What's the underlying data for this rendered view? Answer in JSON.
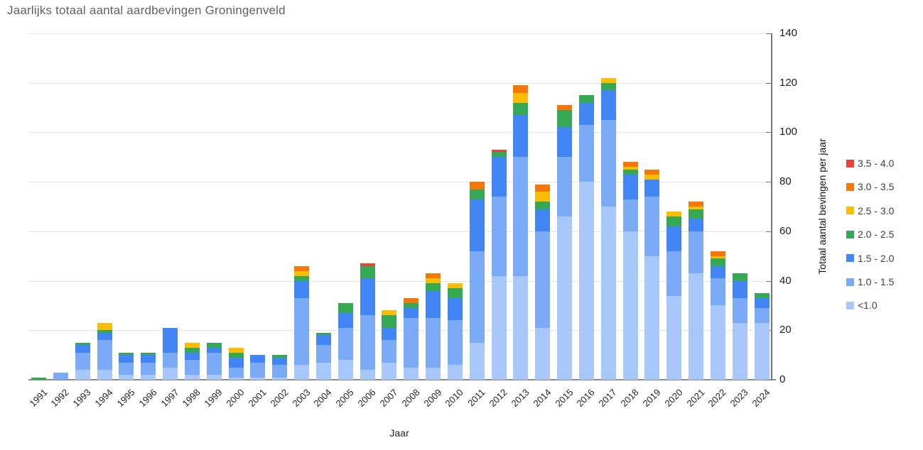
{
  "title": "Jaarlijks totaal aantal aardbevingen Groningenveld",
  "axes": {
    "x_title": "Jaar",
    "y_title": "Totaal aantal bevingen per jaar",
    "y_ticks": [
      0,
      20,
      40,
      60,
      80,
      100,
      120,
      140
    ],
    "y_max": 140
  },
  "legend": [
    {
      "label": "3.5 - 4.0",
      "color": "#EA4335"
    },
    {
      "label": "3.0 - 3.5",
      "color": "#F4770C"
    },
    {
      "label": "2.5 - 3.0",
      "color": "#FBBC04"
    },
    {
      "label": "2.0 - 2.5",
      "color": "#34A853"
    },
    {
      "label": "1.5 - 2.0",
      "color": "#4285F4"
    },
    {
      "label": "1.0 - 1.5",
      "color": "#7BAAF7"
    },
    {
      "label": "<1.0",
      "color": "#A8C7FA"
    }
  ],
  "chart_data": {
    "type": "bar",
    "stacked": true,
    "title": "Jaarlijks totaal aantal aardbevingen Groningenveld",
    "xlabel": "Jaar",
    "ylabel": "Totaal aantal bevingen per jaar",
    "ylim": [
      0,
      140
    ],
    "grid": "horizontal",
    "legend_position": "right",
    "categories": [
      "1991",
      "1992",
      "1993",
      "1994",
      "1995",
      "1996",
      "1997",
      "1998",
      "1999",
      "2000",
      "2001",
      "2002",
      "2003",
      "2004",
      "2005",
      "2006",
      "2007",
      "2008",
      "2009",
      "2010",
      "2011",
      "2012",
      "2013",
      "2014",
      "2015",
      "2016",
      "2017",
      "2018",
      "2019",
      "2020",
      "2021",
      "2022",
      "2023",
      "2024"
    ],
    "series": [
      {
        "name": "<1.0",
        "color": "#A8C7FA",
        "values": [
          0,
          0,
          4,
          4,
          2,
          2,
          5,
          2,
          2,
          1,
          1,
          1,
          6,
          7,
          8,
          4,
          7,
          5,
          5,
          6,
          15,
          42,
          42,
          21,
          66,
          80,
          70,
          60,
          50,
          34,
          43,
          30,
          23,
          23
        ]
      },
      {
        "name": "1.0 - 1.5",
        "color": "#7BAAF7",
        "values": [
          0,
          3,
          7,
          12,
          5,
          5,
          6,
          6,
          9,
          4,
          6,
          5,
          27,
          7,
          13,
          22,
          9,
          20,
          20,
          18,
          37,
          32,
          48,
          39,
          24,
          23,
          35,
          13,
          24,
          18,
          17,
          11,
          10,
          6
        ]
      },
      {
        "name": "1.5 - 2.0",
        "color": "#4285F4",
        "values": [
          0,
          0,
          3,
          3,
          3,
          3,
          10,
          3,
          2,
          4,
          3,
          3,
          7,
          4,
          6,
          15,
          5,
          4,
          11,
          9,
          21,
          16,
          17,
          9,
          12,
          9,
          12,
          10,
          7,
          10,
          5,
          5,
          7,
          4
        ]
      },
      {
        "name": "2.0 - 2.5",
        "color": "#34A853",
        "values": [
          1,
          0,
          1,
          1,
          1,
          1,
          0,
          2,
          2,
          2,
          0,
          1,
          2,
          1,
          4,
          5,
          5,
          2,
          3,
          4,
          4,
          2,
          5,
          3,
          7,
          3,
          3,
          2,
          0,
          4,
          4,
          3,
          3,
          2
        ]
      },
      {
        "name": "2.5 - 3.0",
        "color": "#FBBC04",
        "values": [
          0,
          0,
          0,
          3,
          0,
          0,
          0,
          2,
          0,
          2,
          0,
          0,
          2,
          0,
          0,
          0,
          2,
          0,
          2,
          2,
          0,
          0,
          4,
          4,
          0,
          0,
          2,
          1,
          2,
          2,
          1,
          1,
          0,
          0
        ]
      },
      {
        "name": "3.0 - 3.5",
        "color": "#F4770C",
        "values": [
          0,
          0,
          0,
          0,
          0,
          0,
          0,
          0,
          0,
          0,
          0,
          0,
          2,
          0,
          0,
          0,
          0,
          2,
          2,
          0,
          3,
          0,
          3,
          3,
          2,
          0,
          0,
          2,
          2,
          0,
          2,
          2,
          0,
          0
        ]
      },
      {
        "name": "3.5 - 4.0",
        "color": "#EA4335",
        "values": [
          0,
          0,
          0,
          0,
          0,
          0,
          0,
          0,
          0,
          0,
          0,
          0,
          0,
          0,
          0,
          1,
          0,
          0,
          0,
          0,
          0,
          1,
          0,
          0,
          0,
          0,
          0,
          0,
          0,
          0,
          0,
          0,
          0,
          0
        ]
      }
    ],
    "totals": [
      1,
      3,
      15,
      23,
      11,
      11,
      21,
      15,
      15,
      13,
      10,
      10,
      46,
      19,
      31,
      47,
      28,
      33,
      43,
      39,
      80,
      93,
      119,
      79,
      111,
      115,
      122,
      88,
      85,
      68,
      72,
      52,
      43,
      35
    ]
  }
}
